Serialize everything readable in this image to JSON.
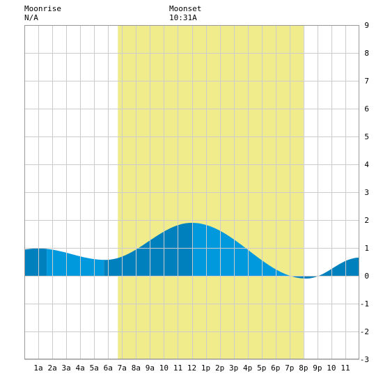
{
  "header": {
    "moonrise_label": "Moonrise",
    "moonrise_value": "N/A",
    "moonset_label": "Moonset",
    "moonset_value": "10:31A"
  },
  "chart_data": {
    "type": "area",
    "title": "",
    "xlabel": "",
    "ylabel": "",
    "xlim": [
      0,
      24
    ],
    "ylim": [
      -3,
      9
    ],
    "y_ticks": [
      "-3",
      "-2",
      "-1",
      "0",
      "1",
      "2",
      "3",
      "4",
      "5",
      "6",
      "7",
      "8",
      "9"
    ],
    "x_ticks": [
      {
        "hour": 1,
        "label": "1a"
      },
      {
        "hour": 2,
        "label": "2a"
      },
      {
        "hour": 3,
        "label": "3a"
      },
      {
        "hour": 4,
        "label": "4a"
      },
      {
        "hour": 5,
        "label": "5a"
      },
      {
        "hour": 6,
        "label": "6a"
      },
      {
        "hour": 7,
        "label": "7a"
      },
      {
        "hour": 8,
        "label": "8a"
      },
      {
        "hour": 9,
        "label": "9a"
      },
      {
        "hour": 10,
        "label": "10"
      },
      {
        "hour": 11,
        "label": "11"
      },
      {
        "hour": 12,
        "label": "12"
      },
      {
        "hour": 13,
        "label": "1p"
      },
      {
        "hour": 14,
        "label": "2p"
      },
      {
        "hour": 15,
        "label": "3p"
      },
      {
        "hour": 16,
        "label": "4p"
      },
      {
        "hour": 17,
        "label": "5p"
      },
      {
        "hour": 18,
        "label": "6p"
      },
      {
        "hour": 19,
        "label": "7p"
      },
      {
        "hour": 20,
        "label": "8p"
      },
      {
        "hour": 21,
        "label": "9p"
      },
      {
        "hour": 22,
        "label": "10"
      },
      {
        "hour": 23,
        "label": "11"
      }
    ],
    "grid": true,
    "daylight": {
      "start_hour": 6.7,
      "end_hour": 20.0,
      "color": "#f0ec8c"
    },
    "tide_extremes": [
      {
        "hour": 1.0,
        "value": 0.98
      },
      {
        "hour": 5.8,
        "value": 0.57
      },
      {
        "hour": 12.0,
        "value": 1.9
      },
      {
        "hour": 20.2,
        "value": -0.1
      },
      {
        "hour": 24.0,
        "value": 0.65
      }
    ],
    "band_boundaries": [
      1.6,
      5.7,
      12.1,
      19.2
    ],
    "colors": {
      "tide_dark": "#0080bd",
      "tide_light": "#0099dd",
      "grid": "#cccccc",
      "border": "#999999"
    }
  }
}
